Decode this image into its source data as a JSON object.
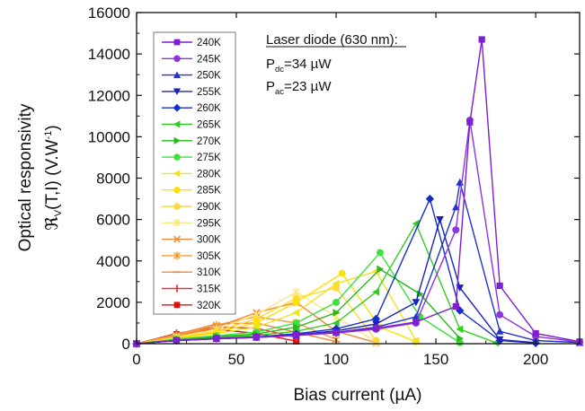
{
  "chart_data": {
    "type": "line",
    "xlabel": "Bias current (µA)",
    "ylabel_line1": "Optical responsivity",
    "ylabel_line2_main": "ℜ",
    "ylabel_line2_sub": "V",
    "ylabel_line2_rest": "(T,I) (V.W",
    "ylabel_line2_sup": "-1",
    "ylabel_line2_end": ")",
    "xlim": [
      0,
      222
    ],
    "ylim": [
      0,
      16000
    ],
    "x_ticks": [
      0,
      50,
      100,
      150,
      200
    ],
    "y_ticks": [
      0,
      2000,
      4000,
      6000,
      8000,
      10000,
      12000,
      14000,
      16000
    ],
    "grid": false,
    "legend_position": "top-left",
    "annotation": {
      "title": "Laser diode (630 nm):",
      "line1_main": "P",
      "line1_sub": "dc",
      "line1_rest": "=34 µW",
      "line2_main": "P",
      "line2_sub": "ac",
      "line2_rest": "=23 µW"
    },
    "series": [
      {
        "name": "240K",
        "color": "#7f1fd1",
        "marker": "square",
        "x": [
          0,
          20,
          40,
          60,
          80,
          100,
          120,
          140,
          160,
          167,
          173,
          182,
          200,
          222
        ],
        "y": [
          0,
          150,
          250,
          320,
          420,
          550,
          750,
          1050,
          1800,
          10700,
          14700,
          2800,
          500,
          100
        ]
      },
      {
        "name": "245K",
        "color": "#8c35e0",
        "marker": "circle",
        "x": [
          0,
          20,
          40,
          60,
          80,
          100,
          120,
          140,
          160,
          167,
          182,
          200,
          222
        ],
        "y": [
          0,
          150,
          240,
          300,
          400,
          520,
          700,
          1000,
          5500,
          10800,
          1400,
          350,
          80
        ]
      },
      {
        "name": "250K",
        "color": "#2233cc",
        "marker": "triangle-up",
        "x": [
          0,
          20,
          40,
          60,
          80,
          100,
          120,
          140,
          160,
          162,
          182,
          200,
          222
        ],
        "y": [
          0,
          150,
          240,
          300,
          400,
          550,
          800,
          1300,
          6600,
          7800,
          600,
          150,
          50
        ]
      },
      {
        "name": "255K",
        "color": "#1a22b8",
        "marker": "triangle-down",
        "x": [
          0,
          20,
          40,
          60,
          80,
          100,
          120,
          140,
          152,
          162,
          182,
          200
        ],
        "y": [
          0,
          150,
          240,
          300,
          430,
          620,
          950,
          2000,
          6000,
          2700,
          200,
          50
        ]
      },
      {
        "name": "260K",
        "color": "#1530c8",
        "marker": "diamond",
        "x": [
          0,
          20,
          40,
          60,
          80,
          100,
          120,
          147,
          162,
          182,
          200
        ],
        "y": [
          0,
          150,
          260,
          330,
          480,
          720,
          1200,
          7000,
          1600,
          150,
          30
        ]
      },
      {
        "name": "265K",
        "color": "#33cc22",
        "marker": "triangle-left",
        "x": [
          0,
          20,
          40,
          60,
          80,
          100,
          120,
          140,
          162,
          180
        ],
        "y": [
          0,
          180,
          300,
          400,
          600,
          1000,
          2500,
          5800,
          700,
          50
        ]
      },
      {
        "name": "270K",
        "color": "#2ab81a",
        "marker": "triangle-right",
        "x": [
          0,
          20,
          40,
          60,
          80,
          100,
          122,
          142,
          162
        ],
        "y": [
          0,
          200,
          340,
          470,
          800,
          1500,
          3600,
          2400,
          250
        ]
      },
      {
        "name": "275K",
        "color": "#3de03d",
        "marker": "circle",
        "x": [
          0,
          20,
          40,
          60,
          80,
          100,
          122,
          142,
          162
        ],
        "y": [
          0,
          220,
          380,
          560,
          1000,
          2000,
          4400,
          1300,
          50
        ]
      },
      {
        "name": "280K",
        "color": "#f2e21a",
        "marker": "triangle-left",
        "x": [
          0,
          20,
          40,
          60,
          80,
          100,
          120,
          140
        ],
        "y": [
          0,
          250,
          500,
          800,
          1500,
          2900,
          3500,
          150
        ]
      },
      {
        "name": "285K",
        "color": "#ffe000",
        "marker": "circle",
        "x": [
          0,
          20,
          40,
          60,
          80,
          103,
          122,
          140
        ],
        "y": [
          0,
          280,
          560,
          1000,
          2000,
          3400,
          800,
          100
        ]
      },
      {
        "name": "290K",
        "color": "#ffd83a",
        "marker": "circle",
        "x": [
          0,
          20,
          40,
          60,
          80,
          100,
          120
        ],
        "y": [
          0,
          300,
          600,
          1200,
          2200,
          2700,
          150
        ]
      },
      {
        "name": "295K",
        "color": "#ffe680",
        "marker": "star",
        "x": [
          0,
          20,
          40,
          60,
          80,
          100,
          120
        ],
        "y": [
          0,
          320,
          700,
          1400,
          2500,
          1300,
          80
        ]
      },
      {
        "name": "300K",
        "color": "#f08a35",
        "marker": "cross",
        "x": [
          0,
          20,
          40,
          60,
          80,
          100,
          120
        ],
        "y": [
          0,
          350,
          800,
          1500,
          2000,
          600,
          50
        ]
      },
      {
        "name": "305K",
        "color": "#f29c3a",
        "marker": "star",
        "x": [
          0,
          20,
          40,
          60,
          80,
          100
        ],
        "y": [
          0,
          400,
          900,
          1300,
          1000,
          200
        ]
      },
      {
        "name": "310K",
        "color": "#ee8844",
        "marker": "hline",
        "x": [
          0,
          20,
          40,
          60,
          80,
          100
        ],
        "y": [
          0,
          450,
          950,
          1000,
          550,
          100
        ]
      },
      {
        "name": "315K",
        "color": "#e33333",
        "marker": "vline",
        "x": [
          0,
          20,
          40,
          60,
          80
        ],
        "y": [
          0,
          500,
          800,
          750,
          300
        ]
      },
      {
        "name": "320K",
        "color": "#e21111",
        "marker": "square",
        "x": [
          0,
          20,
          40,
          60,
          80
        ],
        "y": [
          0,
          450,
          700,
          500,
          120
        ]
      }
    ]
  }
}
